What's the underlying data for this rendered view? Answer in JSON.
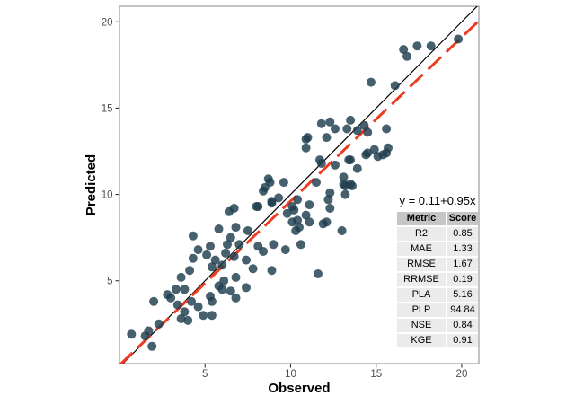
{
  "chart_data": {
    "type": "scatter",
    "title": "",
    "xlabel": "Observed",
    "ylabel": "Predicted",
    "xlim": [
      0,
      21
    ],
    "ylim": [
      0.2,
      20.9
    ],
    "xticks": [
      5,
      10,
      15,
      20
    ],
    "yticks": [
      5,
      10,
      15,
      20
    ],
    "grid": false,
    "legend": "none",
    "point_color": "#1f3d4d",
    "point_opacity": 0.82,
    "panel_border_color": "#9b9b9b",
    "tick_color": "#333333",
    "tick_label_color": "#4d4d4d",
    "equation_label": "y = 0.11+0.95x",
    "lines": [
      {
        "name": "identity-line",
        "slope": 1,
        "intercept": 0,
        "color": "#000000",
        "dash": null,
        "width": 1.2
      },
      {
        "name": "regression-line",
        "slope": 0.95,
        "intercept": 0.11,
        "color": "#ee3c22",
        "dash": "20 8",
        "width": 3
      }
    ],
    "stats_table": {
      "headers": [
        "Metric",
        "Score"
      ],
      "rows": [
        [
          "R2",
          "0.85"
        ],
        [
          "MAE",
          "1.33"
        ],
        [
          "RMSE",
          "1.67"
        ],
        [
          "RRMSE",
          "0.19"
        ],
        [
          "PLA",
          "5.16"
        ],
        [
          "PLP",
          "94.84"
        ],
        [
          "NSE",
          "0.84"
        ],
        [
          "KGE",
          "0.91"
        ]
      ]
    },
    "points": [
      [
        0.7,
        1.9
      ],
      [
        1.5,
        1.8
      ],
      [
        1.7,
        2.1
      ],
      [
        1.9,
        1.2
      ],
      [
        2.0,
        3.8
      ],
      [
        2.3,
        2.5
      ],
      [
        2.8,
        4.2
      ],
      [
        3.0,
        4.0
      ],
      [
        3.3,
        4.5
      ],
      [
        3.4,
        3.6
      ],
      [
        3.6,
        2.8
      ],
      [
        3.6,
        5.2
      ],
      [
        3.8,
        3.2
      ],
      [
        3.8,
        4.5
      ],
      [
        4.0,
        2.7
      ],
      [
        4.1,
        5.6
      ],
      [
        4.2,
        3.8
      ],
      [
        4.3,
        6.3
      ],
      [
        4.3,
        7.6
      ],
      [
        4.6,
        3.5
      ],
      [
        4.6,
        6.8
      ],
      [
        4.9,
        3.0
      ],
      [
        5.1,
        6.5
      ],
      [
        5.3,
        4.1
      ],
      [
        5.3,
        7.0
      ],
      [
        5.4,
        3.0
      ],
      [
        5.4,
        3.8
      ],
      [
        5.4,
        5.8
      ],
      [
        5.6,
        6.2
      ],
      [
        5.8,
        4.7
      ],
      [
        5.8,
        8.0
      ],
      [
        6.0,
        4.5
      ],
      [
        6.0,
        5.9
      ],
      [
        6.1,
        5.0
      ],
      [
        6.2,
        6.6
      ],
      [
        6.3,
        7.1
      ],
      [
        6.4,
        9.0
      ],
      [
        6.5,
        4.4
      ],
      [
        6.5,
        7.5
      ],
      [
        6.7,
        6.4
      ],
      [
        6.7,
        9.2
      ],
      [
        6.8,
        4.0
      ],
      [
        6.8,
        5.2
      ],
      [
        6.8,
        8.1
      ],
      [
        7.0,
        7.1
      ],
      [
        7.4,
        4.6
      ],
      [
        7.4,
        6.2
      ],
      [
        7.5,
        7.9
      ],
      [
        7.8,
        5.7
      ],
      [
        8.0,
        9.3
      ],
      [
        8.1,
        7.0
      ],
      [
        8.1,
        9.3
      ],
      [
        8.4,
        6.7
      ],
      [
        8.4,
        10.2
      ],
      [
        8.5,
        10.4
      ],
      [
        8.7,
        10.9
      ],
      [
        8.8,
        10.7
      ],
      [
        8.9,
        5.6
      ],
      [
        8.9,
        9.5
      ],
      [
        8.9,
        9.6
      ],
      [
        9.0,
        7.1
      ],
      [
        9.3,
        9.8
      ],
      [
        9.6,
        10.7
      ],
      [
        9.7,
        6.8
      ],
      [
        9.8,
        8.9
      ],
      [
        10.1,
        8.4
      ],
      [
        10.1,
        9.3
      ],
      [
        10.2,
        9.1
      ],
      [
        10.3,
        7.9
      ],
      [
        10.4,
        8.5
      ],
      [
        10.4,
        9.7
      ],
      [
        10.5,
        8.1
      ],
      [
        10.6,
        7.1
      ],
      [
        10.9,
        8.8
      ],
      [
        10.9,
        12.7
      ],
      [
        10.9,
        13.2
      ],
      [
        11.0,
        13.3
      ],
      [
        11.1,
        8.4
      ],
      [
        11.1,
        9.4
      ],
      [
        11.5,
        10.7
      ],
      [
        11.6,
        5.4
      ],
      [
        11.7,
        12.0
      ],
      [
        11.8,
        11.8
      ],
      [
        11.8,
        14.1
      ],
      [
        11.9,
        8.3
      ],
      [
        12.1,
        8.4
      ],
      [
        12.1,
        13.3
      ],
      [
        12.2,
        9.7
      ],
      [
        12.3,
        9.2
      ],
      [
        12.3,
        10.1
      ],
      [
        12.3,
        14.2
      ],
      [
        12.6,
        11.7
      ],
      [
        12.6,
        13.8
      ],
      [
        13.0,
        7.9
      ],
      [
        13.1,
        10.6
      ],
      [
        13.1,
        11.0
      ],
      [
        13.2,
        10.0
      ],
      [
        13.2,
        10.5
      ],
      [
        13.3,
        13.8
      ],
      [
        13.4,
        12.0
      ],
      [
        13.5,
        10.6
      ],
      [
        13.5,
        12.0
      ],
      [
        13.5,
        14.3
      ],
      [
        13.6,
        10.5
      ],
      [
        13.9,
        11.5
      ],
      [
        13.9,
        13.7
      ],
      [
        14.3,
        14.0
      ],
      [
        14.4,
        12.3
      ],
      [
        14.5,
        12.4
      ],
      [
        14.5,
        13.6
      ],
      [
        14.7,
        16.5
      ],
      [
        14.9,
        12.6
      ],
      [
        15.1,
        12.2
      ],
      [
        15.4,
        12.3
      ],
      [
        15.6,
        12.4
      ],
      [
        15.6,
        13.8
      ],
      [
        15.7,
        12.7
      ],
      [
        16.1,
        16.3
      ],
      [
        16.6,
        18.4
      ],
      [
        16.8,
        18.0
      ],
      [
        17.4,
        18.6
      ],
      [
        18.2,
        18.6
      ],
      [
        19.8,
        19.0
      ]
    ]
  }
}
